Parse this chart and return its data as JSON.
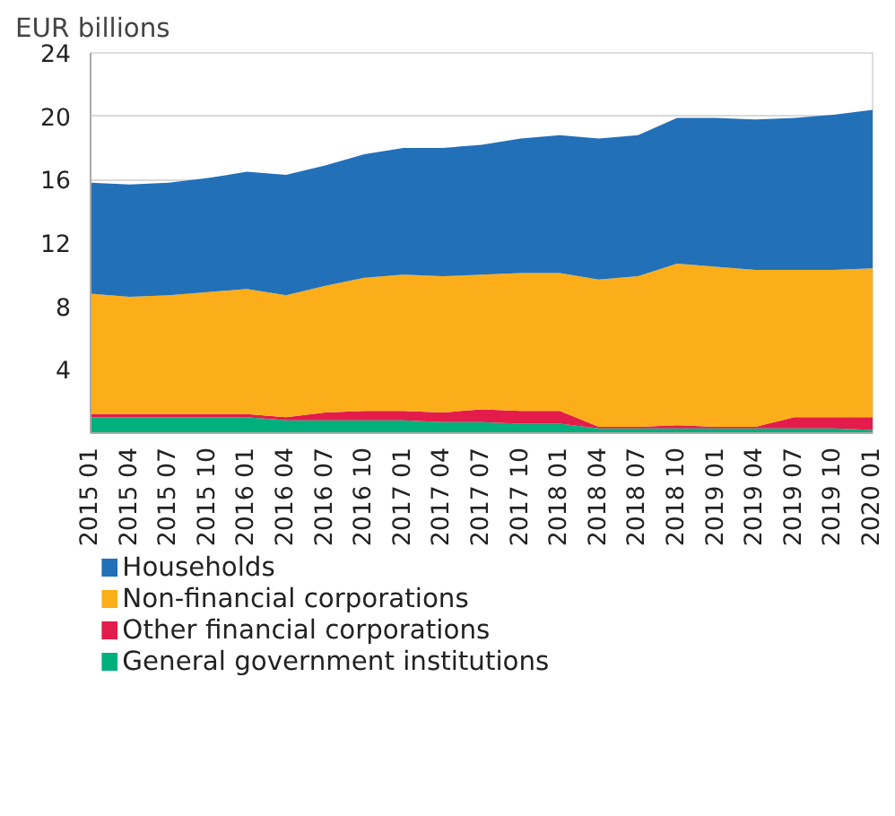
{
  "chart_data": {
    "type": "area",
    "stacked": true,
    "ylabel": "EUR billions",
    "categories": [
      "2015 01",
      "2015 04",
      "2015 07",
      "2015 10",
      "2016 01",
      "2016 04",
      "2016 07",
      "2016 10",
      "2017 01",
      "2017 04",
      "2017 07",
      "2017 10",
      "2018 01",
      "2018 04",
      "2018 07",
      "2018 10",
      "2019 01",
      "2019 04",
      "2019 07",
      "2019 10",
      "2020 01"
    ],
    "series": [
      {
        "name": "General government institutions",
        "color": "#00b07c",
        "values": [
          1.0,
          1.0,
          1.0,
          1.0,
          1.0,
          0.8,
          0.8,
          0.8,
          0.8,
          0.7,
          0.7,
          0.6,
          0.6,
          0.3,
          0.3,
          0.3,
          0.3,
          0.3,
          0.3,
          0.3,
          0.2
        ]
      },
      {
        "name": "Other financial corporations",
        "color": "#e31c4b",
        "values": [
          0.2,
          0.2,
          0.2,
          0.2,
          0.2,
          0.2,
          0.5,
          0.6,
          0.6,
          0.6,
          0.8,
          0.8,
          0.8,
          0.1,
          0.1,
          0.2,
          0.1,
          0.1,
          0.7,
          0.7,
          0.8
        ]
      },
      {
        "name": "Non-financial corporations",
        "color": "#fbae1a",
        "values": [
          7.6,
          7.4,
          7.5,
          7.7,
          7.9,
          7.7,
          8.0,
          8.4,
          8.6,
          8.6,
          8.5,
          8.7,
          8.7,
          9.3,
          9.5,
          10.2,
          10.1,
          9.9,
          9.3,
          9.3,
          9.4
        ]
      },
      {
        "name": "Households",
        "color": "#2270b8",
        "values": [
          7.0,
          7.1,
          7.1,
          7.2,
          7.4,
          7.6,
          7.6,
          7.8,
          8.0,
          8.1,
          8.2,
          8.5,
          8.7,
          8.9,
          8.9,
          9.2,
          9.4,
          9.5,
          9.6,
          9.8,
          10.0
        ]
      }
    ],
    "ylim": [
      0,
      24
    ],
    "yticks": [
      4,
      8,
      12,
      16,
      20,
      24
    ],
    "grid": "y",
    "legend": "bottom"
  }
}
